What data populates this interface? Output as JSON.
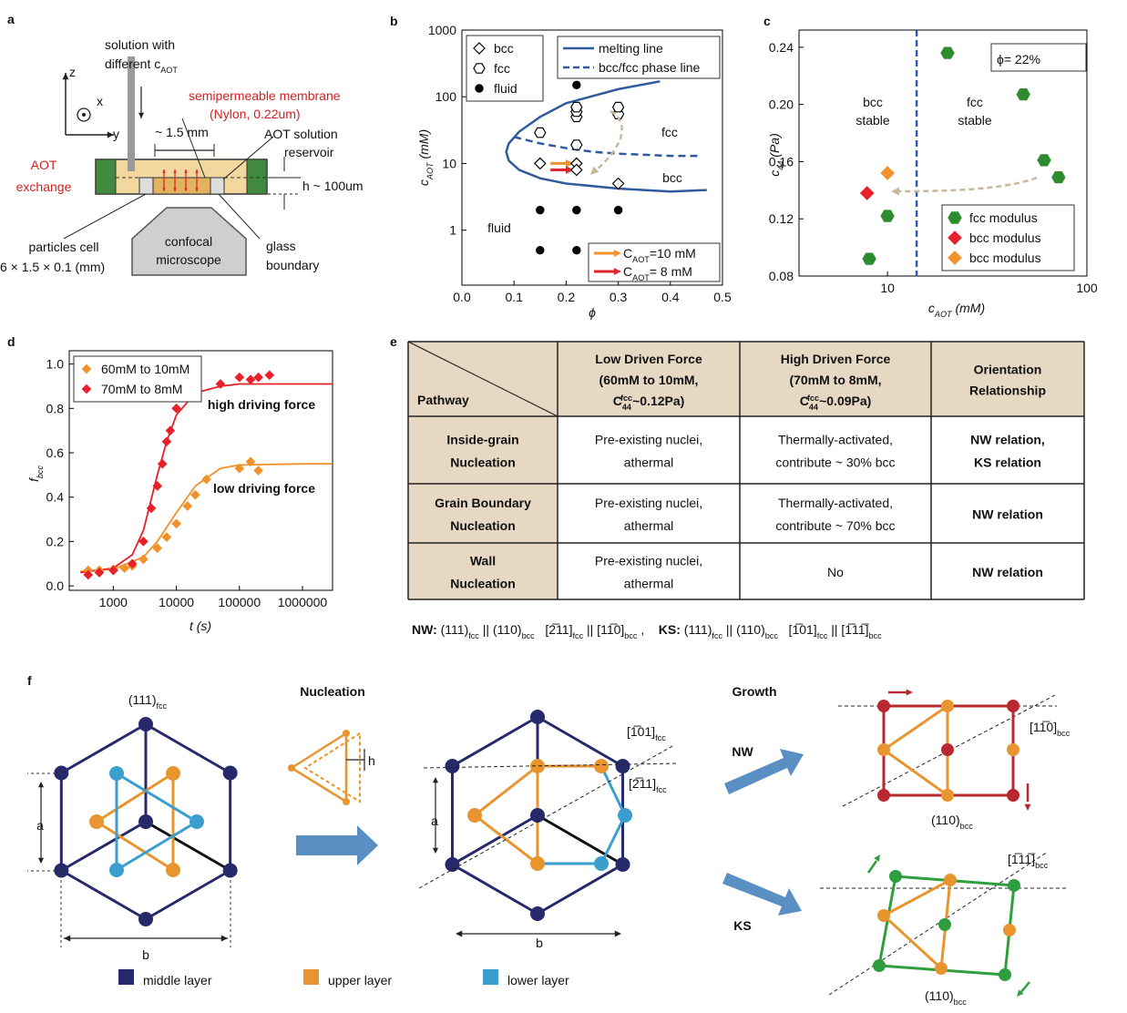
{
  "panel_labels": [
    "a",
    "b",
    "c",
    "d",
    "e",
    "f"
  ],
  "panel_a": {
    "axes": [
      "z",
      "x",
      "y"
    ],
    "solution": [
      "solution with",
      [
        {
          "text": "different c"
        },
        {
          "sub": "AOT"
        }
      ]
    ],
    "membrane": [
      "semipermeable membrane",
      "(Nylon, 0.22um)"
    ],
    "width": "~ 1.5 mm",
    "reservoir": [
      "AOT solution",
      "reservoir"
    ],
    "exchange": [
      "AOT",
      "exchange"
    ],
    "height": "h ~ 100um",
    "cell": [
      "particles cell",
      "6 × 1.5 × 0.1 (mm)"
    ],
    "microscope": [
      "confocal",
      "microscope"
    ],
    "boundary": [
      "glass",
      "boundary"
    ]
  },
  "chart_data": [
    {
      "type": "scatter",
      "xlabel": "ϕ",
      "ylabel": [
        {
          "text": "c"
        },
        {
          "sub": "AOT"
        },
        {
          "text": " (mM)"
        }
      ],
      "xlim": [
        0,
        0.5
      ],
      "ylim": [
        0.15,
        1000
      ],
      "ylog": true,
      "xticks": [
        {
          "value": 0,
          "label": "0.0"
        },
        0.1,
        0.2,
        0.3,
        0.4,
        0.5
      ],
      "yticks": [
        1,
        10,
        100,
        1000
      ],
      "legend": "upper left",
      "series": [
        {
          "name": "bcc",
          "marker": "diamond",
          "color": "#000000",
          "filled": false,
          "x": [
            0.15,
            0.22,
            0.22,
            0.3
          ],
          "values": [
            10,
            10,
            8,
            5
          ]
        },
        {
          "name": "fcc",
          "marker": "hexagon",
          "color": "#000000",
          "filled": false,
          "x": [
            0.15,
            0.22,
            0.22,
            0.22,
            0.22,
            0.3,
            0.3
          ],
          "values": [
            29,
            19,
            50,
            60,
            70,
            55,
            70
          ]
        },
        {
          "name": "fluid",
          "marker": "dot",
          "color": "#000000",
          "filled": true,
          "x": [
            0.22,
            0.15,
            0.22,
            0.3,
            0.15,
            0.22
          ],
          "values": [
            150,
            2,
            2,
            2,
            0.5,
            0.5
          ]
        }
      ],
      "lines": [
        {
          "name": "melting line",
          "color": "#2f5b9e",
          "dashed": false,
          "x": [
            0.38,
            0.3,
            0.2,
            0.15,
            0.11,
            0.09,
            0.085,
            0.09,
            0.11,
            0.15,
            0.2,
            0.3,
            0.4,
            0.47
          ],
          "values": [
            170,
            130,
            80,
            50,
            30,
            20,
            15,
            11,
            8,
            6,
            5,
            4.2,
            3.8,
            4
          ]
        },
        {
          "name": "bcc/fcc phase line",
          "color": "#2f5b9e",
          "dashed": true,
          "x": [
            0.1,
            0.15,
            0.2,
            0.25,
            0.3,
            0.35,
            0.4,
            0.46
          ],
          "values": [
            25,
            20,
            17,
            15,
            14,
            13.5,
            13,
            13
          ]
        }
      ],
      "arrows": [
        {
          "name": [
            {
              "text": "C"
            },
            {
              "sub": "AOT"
            },
            {
              "text": "=10 mM"
            }
          ],
          "color": "#f0922b",
          "x": [
            0.17,
            0.215
          ],
          "values": [
            10,
            10
          ]
        },
        {
          "name": [
            {
              "text": "C"
            },
            {
              "sub": "AOT"
            },
            {
              "text": "= 8 mM"
            }
          ],
          "color": "#e0262b",
          "x": [
            0.17,
            0.215
          ],
          "values": [
            8,
            8
          ]
        }
      ],
      "region_labels": [
        "fcc",
        "bcc",
        "fluid"
      ]
    },
    {
      "type": "scatter",
      "xlabel": [
        {
          "text": "c"
        },
        {
          "sub": "AOT"
        },
        {
          "text": " (mM)"
        }
      ],
      "ylabel": [
        {
          "text": "c"
        },
        {
          "sub": "44"
        },
        {
          "text": " (Pa)"
        }
      ],
      "xlim": [
        3.6,
        100
      ],
      "xlog": true,
      "ylim": [
        0.08,
        0.252
      ],
      "xticks": [
        10,
        100
      ],
      "yticks": [
        0.08,
        0.12,
        0.16,
        {
          "value": 0.2,
          "label": "0.20"
        },
        0.24
      ],
      "legend": "lower right",
      "series": [
        {
          "name": "fcc modulus",
          "marker": "hexagon",
          "color": "#2e8b2e",
          "filled": true,
          "x": [
            20,
            48,
            61,
            72,
            10,
            8.1
          ],
          "values": [
            0.236,
            0.207,
            0.161,
            0.149,
            0.122,
            0.092
          ]
        },
        {
          "name": "bcc modulus",
          "marker": "diamond",
          "color": "#e8202a",
          "filled": true,
          "x": [
            7.9
          ],
          "values": [
            0.138
          ]
        },
        {
          "name": "bcc modulus",
          "marker": "diamond",
          "color": "#f0922b",
          "filled": true,
          "x": [
            10
          ],
          "values": [
            0.152
          ]
        }
      ],
      "phase_boundary_x": 14,
      "annotation": "ϕ= 22%",
      "region_labels": [
        [
          "bcc",
          "stable"
        ],
        [
          "fcc",
          "stable"
        ]
      ]
    },
    {
      "type": "scatter",
      "xlabel": "t (s)",
      "ylabel": [
        {
          "text": "f"
        },
        {
          "sub": "bcc"
        }
      ],
      "xlim": [
        200,
        3000000
      ],
      "xlog": true,
      "ylim": [
        -0.02,
        1.06
      ],
      "xticks": [
        1000,
        10000,
        100000,
        1000000
      ],
      "yticks": [
        {
          "value": 0,
          "label": "0.0"
        },
        0.2,
        0.4,
        0.6,
        0.8,
        {
          "value": 1,
          "label": "1.0"
        }
      ],
      "legend": "upper left",
      "series": [
        {
          "name": "60mM to 10mM",
          "marker": "diamond",
          "color": "#f0922b",
          "filled": true,
          "x": [
            400,
            600,
            1000,
            1500,
            2000,
            3000,
            5000,
            7000,
            10000,
            15000,
            20000,
            30000,
            100000,
            150000,
            200000
          ],
          "values": [
            0.07,
            0.07,
            0.075,
            0.08,
            0.09,
            0.12,
            0.17,
            0.22,
            0.28,
            0.36,
            0.41,
            0.48,
            0.53,
            0.56,
            0.52
          ]
        },
        {
          "name": "70mM to 8mM",
          "marker": "diamond",
          "color": "#e8202a",
          "filled": true,
          "x": [
            400,
            600,
            1000,
            2000,
            3000,
            4000,
            5000,
            6000,
            7000,
            8000,
            10000,
            15000,
            20000,
            50000,
            100000,
            150000,
            200000,
            300000
          ],
          "values": [
            0.05,
            0.06,
            0.07,
            0.1,
            0.2,
            0.35,
            0.45,
            0.55,
            0.65,
            0.7,
            0.8,
            0.86,
            0.88,
            0.91,
            0.94,
            0.93,
            0.94,
            0.95
          ]
        }
      ],
      "fits": [
        {
          "color": "#f0922b",
          "x": [
            300,
            1000,
            3000,
            5000,
            10000,
            20000,
            50000,
            100000,
            1000000,
            3000000
          ],
          "values": [
            0.065,
            0.075,
            0.13,
            0.2,
            0.33,
            0.45,
            0.53,
            0.545,
            0.55,
            0.55
          ]
        },
        {
          "color": "#e8202a",
          "x": [
            300,
            1000,
            2000,
            3000,
            5000,
            7000,
            10000,
            20000,
            50000,
            100000,
            1000000,
            3000000
          ],
          "values": [
            0.06,
            0.08,
            0.14,
            0.25,
            0.5,
            0.65,
            0.77,
            0.87,
            0.9,
            0.91,
            0.91,
            0.91
          ]
        }
      ],
      "annotations": [
        "high driving force",
        "low driving force"
      ]
    }
  ],
  "table": {
    "header": [
      [
        "Pathway"
      ],
      [
        "Low Driven Force",
        "(60mM to 10mM,",
        [
          {
            "text": "C"
          },
          {
            "sub": "44"
          },
          {
            "sup": "fcc"
          },
          {
            "text": "~0.12Pa)"
          }
        ]
      ],
      [
        "High Driven Force",
        "(70mM to 8mM,",
        [
          {
            "text": "C"
          },
          {
            "sub": "44"
          },
          {
            "sup": "fcc"
          },
          {
            "text": "~0.09Pa)"
          }
        ]
      ],
      [
        "Orientation",
        "Relationship"
      ]
    ],
    "rows": [
      [
        [
          "Inside-grain",
          "Nucleation"
        ],
        [
          "Pre-existing nuclei,",
          "athermal"
        ],
        [
          "Thermally-activated,",
          "contribute ~ 30% bcc"
        ],
        [
          "NW relation,",
          "KS relation"
        ]
      ],
      [
        [
          "Grain Boundary",
          "Nucleation"
        ],
        [
          "Pre-existing nuclei,",
          "athermal"
        ],
        [
          "Thermally-activated,",
          "contribute ~ 70% bcc"
        ],
        [
          "NW relation"
        ]
      ],
      [
        [
          "Wall",
          "Nucleation"
        ],
        [
          "Pre-existing nuclei,",
          "athermal"
        ],
        [
          "No"
        ],
        [
          "NW relation"
        ]
      ]
    ],
    "footer": [
      {
        "bold": "NW:"
      },
      {
        "text": " (111)"
      },
      {
        "sub": "fcc"
      },
      {
        "text": " || (110)"
      },
      {
        "sub": "bcc"
      },
      {
        "text": "   [2̅11]"
      },
      {
        "sub": "fcc"
      },
      {
        "text": " || [11̅0]"
      },
      {
        "sub": "bcc"
      },
      {
        "text": " ,    "
      },
      {
        "bold": "KS:"
      },
      {
        "text": " (111)"
      },
      {
        "sub": "fcc"
      },
      {
        "text": " || (110)"
      },
      {
        "sub": "bcc"
      },
      {
        "text": "   [1̅01]"
      },
      {
        "sub": "fcc"
      },
      {
        "text": " || [1̅11̅]"
      },
      {
        "sub": "bcc"
      }
    ]
  },
  "panel_f": {
    "plane": [
      {
        "text": "(111)"
      },
      {
        "sub": "fcc"
      }
    ],
    "nucleation": "Nucleation",
    "h": "h",
    "a": [
      "a",
      "a"
    ],
    "b": [
      "b",
      "b"
    ],
    "dir1": [
      {
        "text": "[1̅01]"
      },
      {
        "sub": "fcc"
      }
    ],
    "dir2": [
      {
        "text": "[2̅11]"
      },
      {
        "sub": "fcc"
      }
    ],
    "growth": "Growth",
    "paths": [
      "NW",
      "KS"
    ],
    "nw_dir": [
      {
        "text": "[11̅0]"
      },
      {
        "sub": "bcc"
      }
    ],
    "nw_plane": [
      {
        "text": "(110)"
      },
      {
        "sub": "bcc"
      }
    ],
    "ks_dir": [
      {
        "text": "[1̅11̅]"
      },
      {
        "sub": "bcc"
      }
    ],
    "ks_plane": [
      {
        "text": "(110)"
      },
      {
        "sub": "bcc"
      }
    ],
    "legend": [
      {
        "name": "middle layer",
        "color": "#262a6b"
      },
      {
        "name": "upper layer",
        "color": "#e8952f"
      },
      {
        "name": "lower layer",
        "color": "#3a9fcf"
      }
    ]
  }
}
